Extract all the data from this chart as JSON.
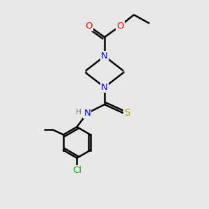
{
  "background_color": "#e8e8e8",
  "atom_colors": {
    "C": "#000000",
    "N": "#0000cc",
    "O": "#ff0000",
    "S": "#aaaa00",
    "Cl": "#00aa00",
    "H": "#666666"
  },
  "figsize": [
    3.0,
    3.0
  ],
  "dpi": 100,
  "xlim": [
    0,
    10
  ],
  "ylim": [
    0,
    12
  ]
}
